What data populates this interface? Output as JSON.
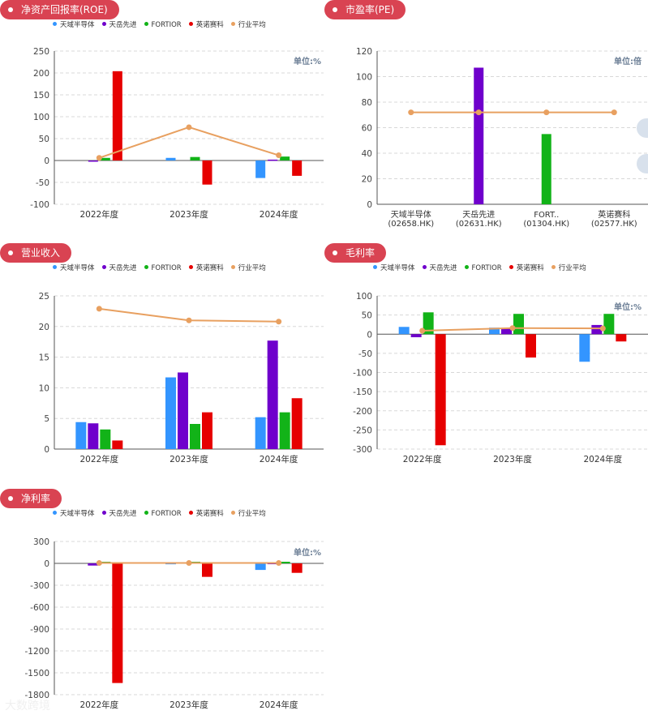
{
  "colors": {
    "pill": "#d94352",
    "series": [
      "#3395ff",
      "#6f00cc",
      "#12b318",
      "#e60000",
      "#e8a060"
    ],
    "unit_text": "#6b7e95"
  },
  "legend": [
    "天域半导体",
    "天岳先进",
    "FORTIOR",
    "英诺赛科",
    "行业平均"
  ],
  "watermark": "大数跨境",
  "panels": [
    {
      "id": "roe",
      "title": "净资产回报率(ROE)",
      "unit": "单位:%",
      "chart_data": {
        "type": "bar",
        "categories": [
          "2022年度",
          "2023年度",
          "2024年度"
        ],
        "ylim": [
          -100,
          250
        ],
        "yticks": [
          250,
          200,
          150,
          100,
          50,
          0,
          -50,
          -100
        ],
        "series": [
          {
            "name": "天域半导体",
            "values": [
              null,
              6,
              -40
            ]
          },
          {
            "name": "天岳先进",
            "values": [
              -2,
              null,
              2
            ]
          },
          {
            "name": "FORTIOR",
            "values": [
              6,
              8,
              9
            ]
          },
          {
            "name": "英诺赛科",
            "values": [
              204,
              -55,
              -35
            ]
          }
        ],
        "line": {
          "name": "行业平均",
          "values": [
            6,
            76,
            12
          ]
        }
      }
    },
    {
      "id": "pe",
      "title": "市盈率(PE)",
      "unit": "单位:倍",
      "chart_data": {
        "type": "bar",
        "categories": [
          "天域半导体\n(02658.HK)",
          "天岳先进\n(02631.HK)",
          "FORT..\n(01304.HK)",
          "英诺赛科\n(02577.HK)"
        ],
        "ylim": [
          0,
          120
        ],
        "yticks": [
          120,
          100,
          80,
          60,
          40,
          20,
          0
        ],
        "values": [
          null,
          107,
          55,
          null
        ],
        "bar_colors": [
          "#3395ff",
          "#6f00cc",
          "#12b318",
          "#e60000"
        ],
        "line": {
          "name": "行业平均",
          "values": [
            72,
            72,
            72,
            72
          ]
        }
      }
    },
    {
      "id": "revenue",
      "title": "营业收入",
      "unit": "",
      "chart_data": {
        "type": "bar",
        "categories": [
          "2022年度",
          "2023年度",
          "2024年度"
        ],
        "ylim": [
          0,
          25
        ],
        "yticks": [
          25,
          20,
          15,
          10,
          5,
          0
        ],
        "series": [
          {
            "name": "天域半导体",
            "values": [
              4.4,
              11.7,
              5.2
            ]
          },
          {
            "name": "天岳先进",
            "values": [
              4.2,
              12.5,
              17.7
            ]
          },
          {
            "name": "FORTIOR",
            "values": [
              3.2,
              4.1,
              6.0
            ]
          },
          {
            "name": "英诺赛科",
            "values": [
              1.4,
              6.0,
              8.3
            ]
          }
        ],
        "line": {
          "name": "行业平均",
          "values": [
            22.9,
            21.0,
            20.8
          ]
        }
      }
    },
    {
      "id": "gross",
      "title": "毛利率",
      "unit": "单位:%",
      "chart_data": {
        "type": "bar",
        "categories": [
          "2022年度",
          "2023年度",
          "2024年度"
        ],
        "ylim": [
          -300,
          100
        ],
        "yticks": [
          100,
          50,
          0,
          -50,
          -100,
          -150,
          -200,
          -250,
          -300
        ],
        "series": [
          {
            "name": "天域半导体",
            "values": [
              19,
              17,
              -72
            ]
          },
          {
            "name": "天岳先进",
            "values": [
              -8,
              15,
              24
            ]
          },
          {
            "name": "FORTIOR",
            "values": [
              57,
              53,
              53
            ]
          },
          {
            "name": "英诺赛科",
            "values": [
              -290,
              -61,
              -19
            ]
          }
        ],
        "line": {
          "name": "行业平均",
          "values": [
            9,
            16,
            15
          ]
        }
      }
    },
    {
      "id": "net",
      "title": "净利率",
      "unit": "单位:%",
      "chart_data": {
        "type": "bar",
        "categories": [
          "2022年度",
          "2023年度",
          "2024年度"
        ],
        "ylim": [
          -1800,
          300
        ],
        "yticks": [
          300,
          0,
          -300,
          -600,
          -900,
          -1200,
          -1500,
          -1800
        ],
        "series": [
          {
            "name": "天域半导体",
            "values": [
              null,
              4,
              -90
            ]
          },
          {
            "name": "天岳先进",
            "values": [
              -30,
              null,
              5
            ]
          },
          {
            "name": "FORTIOR",
            "values": [
              22,
              22,
              22
            ]
          },
          {
            "name": "英诺赛科",
            "values": [
              -1640,
              -185,
              -130
            ]
          }
        ],
        "line": {
          "name": "行业平均",
          "values": [
            5,
            5,
            5
          ]
        }
      }
    }
  ]
}
